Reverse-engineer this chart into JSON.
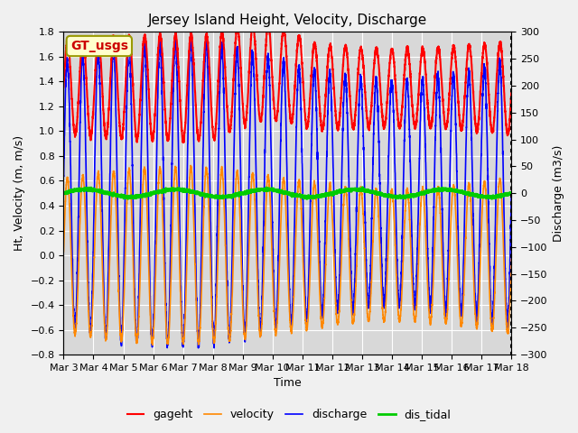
{
  "title": "Jersey Island Height, Velocity, Discharge",
  "xlabel": "Time",
  "ylabel_left": "Ht, Velocity (m, m/s)",
  "ylabel_right": "Discharge (m3/s)",
  "ylim_left": [
    -0.8,
    1.8
  ],
  "ylim_right": [
    -300,
    300
  ],
  "xlim_start": 0,
  "xlim_end": 15,
  "xtick_labels": [
    "Mar 3",
    "Mar 4",
    "Mar 5",
    "Mar 6",
    "Mar 7",
    "Mar 8",
    "Mar 9",
    "Mar 10",
    "Mar 11",
    "Mar 12",
    "Mar 13",
    "Mar 14",
    "Mar 15",
    "Mar 16",
    "Mar 17",
    "Mar 18"
  ],
  "colors": {
    "gageht": "#ff0000",
    "velocity": "#ff8800",
    "discharge": "#0000ff",
    "dis_tidal": "#00cc00"
  },
  "legend_labels": [
    "gageht",
    "velocity",
    "discharge",
    "dis_tidal"
  ],
  "annotation_text": "GT_usgs",
  "annotation_color": "#cc0000",
  "annotation_bg": "#ffffcc",
  "annotation_border": "#999900",
  "fig_facecolor": "#f0f0f0",
  "ax_facecolor": "#d8d8d8",
  "title_fontsize": 11,
  "axis_fontsize": 9,
  "tick_fontsize": 8,
  "legend_fontsize": 9,
  "grid_color": "#ffffff",
  "linewidth_gage": 1.5,
  "linewidth_vel": 1.2,
  "tidal_period_hours": 12.42,
  "gageht_base": 1.35,
  "gageht_amplitude": 0.37,
  "velocity_amplitude": 0.62,
  "discharge_amplitude": 0.63
}
